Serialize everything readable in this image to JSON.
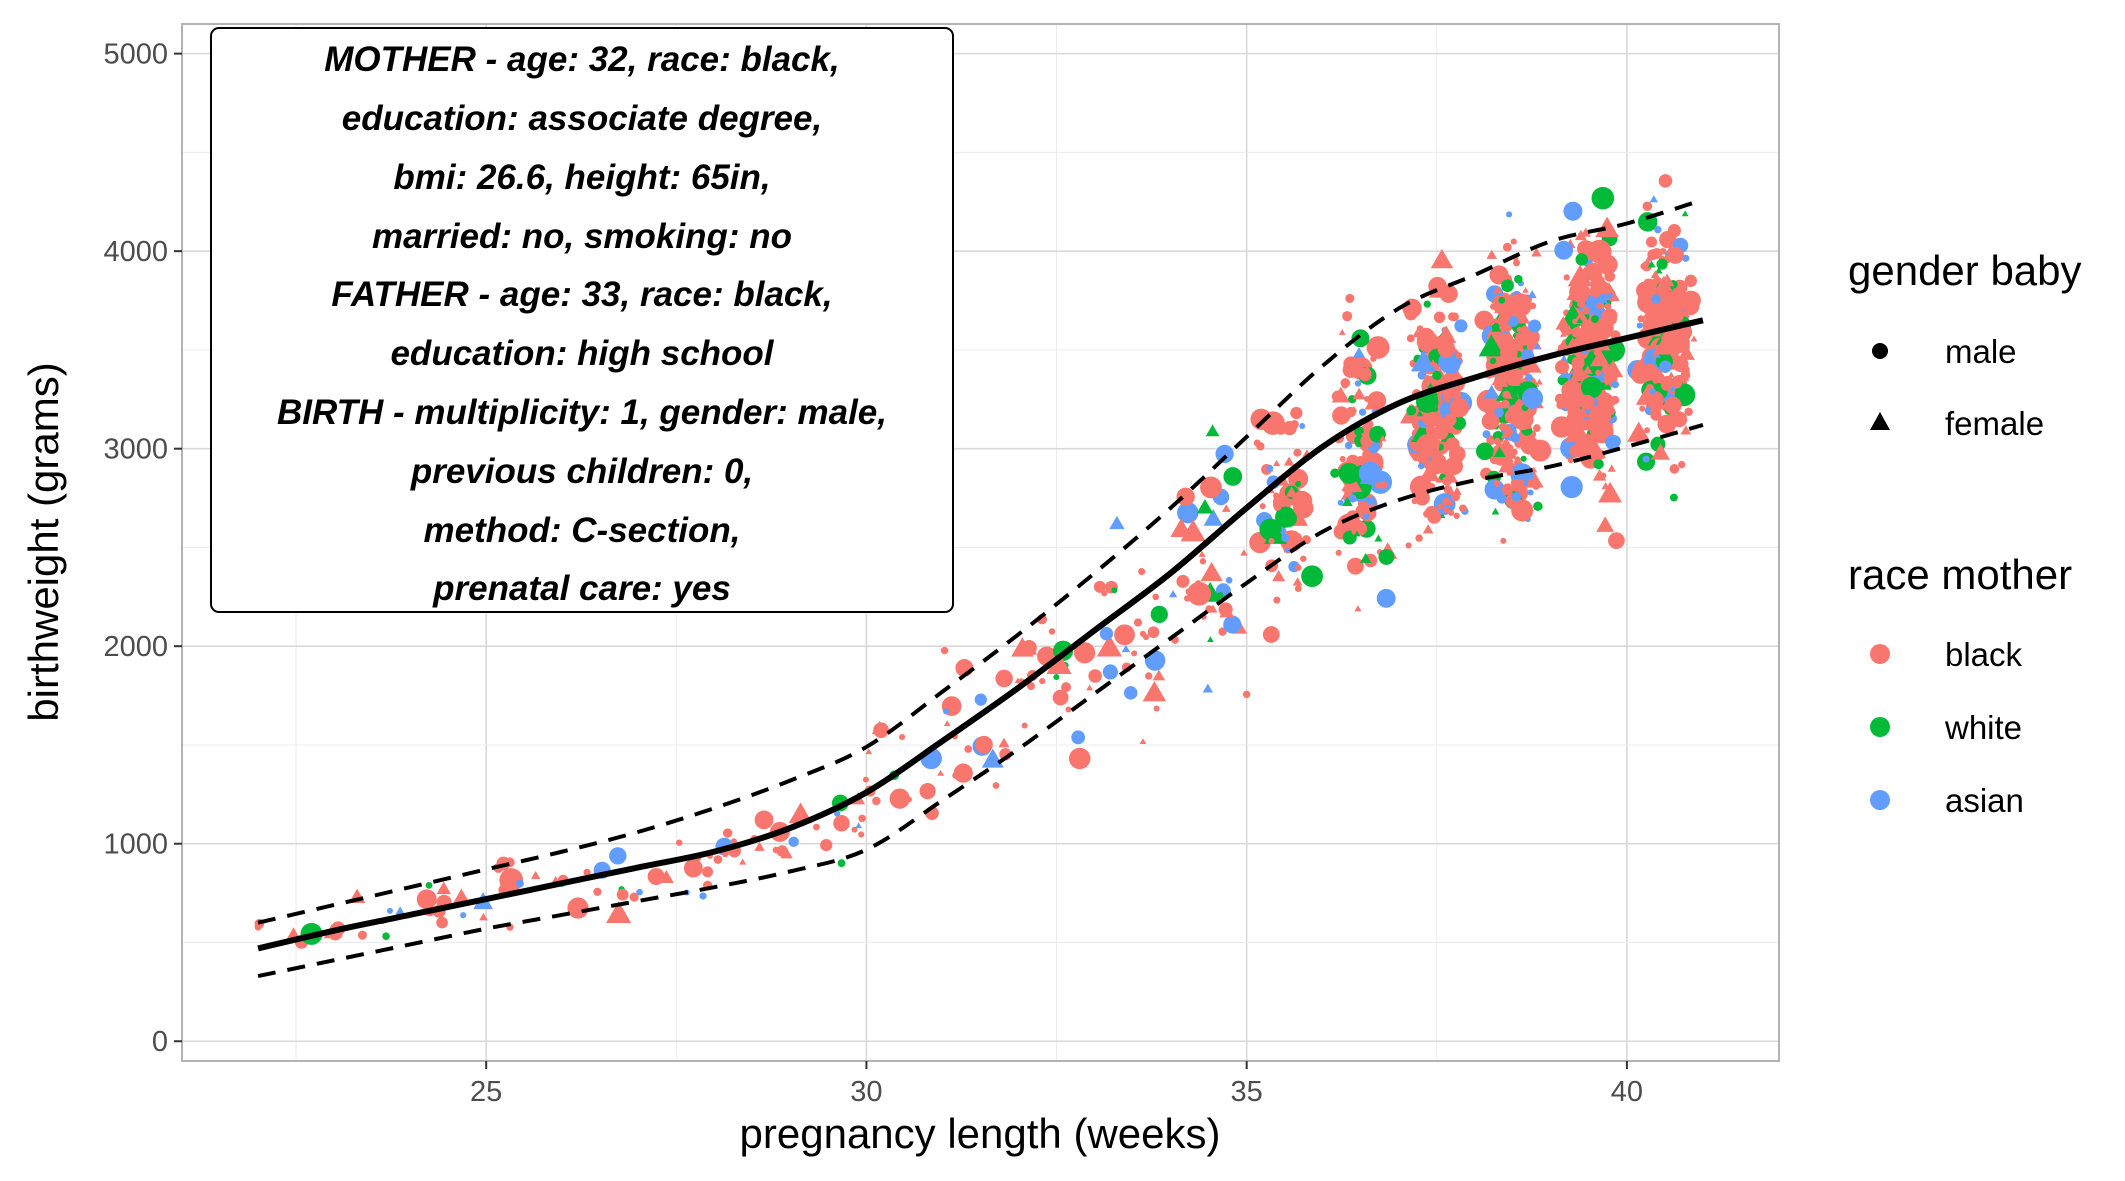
{
  "chart_data": {
    "type": "scatter",
    "xlabel": "pregnancy length (weeks)",
    "ylabel": "birthweight (grams)",
    "xlim": [
      21,
      42
    ],
    "ylim": [
      -100,
      5150
    ],
    "x_ticks": [
      25,
      30,
      35,
      40
    ],
    "x_tick_labels": [
      "25",
      "30",
      "35",
      "40"
    ],
    "y_ticks": [
      0,
      1000,
      2000,
      3000,
      4000,
      5000
    ],
    "y_tick_labels": [
      "0",
      "1000",
      "2000",
      "3000",
      "4000",
      "5000"
    ],
    "grid": true,
    "annotation": {
      "lines": [
        "MOTHER - age: 32, race: black,",
        "education: associate degree,",
        "bmi: 26.6, height: 65in,",
        "married: no, smoking: no",
        "FATHER - age: 33, race: black,",
        "education: high school",
        "BIRTH - multiplicity: 1, gender: male,",
        "previous children: 0,",
        "method: C-section,",
        "prenatal care: yes"
      ],
      "position": "top-left"
    },
    "legends": {
      "shape": {
        "title": "gender baby",
        "items": [
          {
            "label": "male",
            "shape": "circle"
          },
          {
            "label": "female",
            "shape": "triangle"
          }
        ]
      },
      "color": {
        "title": "race mother",
        "items": [
          {
            "label": "black",
            "color": "#F8766D"
          },
          {
            "label": "white",
            "color": "#00BA38"
          },
          {
            "label": "asian",
            "color": "#619CFF"
          }
        ]
      }
    },
    "series": [
      {
        "name": "prediction",
        "style": "solid",
        "x": [
          22,
          23,
          24,
          25,
          26,
          27,
          28,
          29,
          30,
          31,
          32,
          33,
          34,
          35,
          36,
          37,
          38,
          39,
          40,
          41
        ],
        "y": [
          470,
          560,
          640,
          720,
          800,
          880,
          960,
          1080,
          1260,
          1520,
          1790,
          2080,
          2370,
          2700,
          3010,
          3230,
          3360,
          3470,
          3560,
          3650
        ]
      },
      {
        "name": "upper bound",
        "style": "dashed",
        "x": [
          22,
          23,
          24,
          25,
          26,
          27,
          28,
          29,
          30,
          31,
          32,
          33,
          34,
          35,
          36,
          37,
          38,
          39,
          40,
          41
        ],
        "y": [
          600,
          690,
          780,
          870,
          960,
          1060,
          1180,
          1320,
          1490,
          1770,
          2060,
          2370,
          2700,
          3060,
          3420,
          3710,
          3880,
          4050,
          4140,
          4260
        ]
      },
      {
        "name": "lower bound",
        "style": "dashed",
        "x": [
          22,
          23,
          24,
          25,
          26,
          27,
          28,
          29,
          30,
          31,
          32,
          33,
          34,
          35,
          36,
          37,
          38,
          39,
          40,
          41
        ],
        "y": [
          330,
          410,
          490,
          570,
          640,
          710,
          780,
          860,
          970,
          1220,
          1480,
          1760,
          2040,
          2320,
          2580,
          2740,
          2840,
          2910,
          3010,
          3120
        ]
      }
    ],
    "scatter_groups": [
      {
        "x_range": [
          22,
          23
        ],
        "y_center": 560,
        "y_spread": 150,
        "count": 6
      },
      {
        "x_range": [
          23,
          24
        ],
        "y_center": 620,
        "y_spread": 170,
        "count": 8
      },
      {
        "x_range": [
          24,
          25
        ],
        "y_center": 680,
        "y_spread": 190,
        "count": 12
      },
      {
        "x_range": [
          25,
          26
        ],
        "y_center": 750,
        "y_spread": 210,
        "count": 12
      },
      {
        "x_range": [
          26,
          27
        ],
        "y_center": 820,
        "y_spread": 230,
        "count": 10
      },
      {
        "x_range": [
          27,
          28
        ],
        "y_center": 900,
        "y_spread": 250,
        "count": 12
      },
      {
        "x_range": [
          28,
          29
        ],
        "y_center": 1000,
        "y_spread": 270,
        "count": 14
      },
      {
        "x_range": [
          29,
          30
        ],
        "y_center": 1120,
        "y_spread": 300,
        "count": 14
      },
      {
        "x_range": [
          30,
          31
        ],
        "y_center": 1300,
        "y_spread": 330,
        "count": 14
      },
      {
        "x_range": [
          31,
          32
        ],
        "y_center": 1560,
        "y_spread": 400,
        "count": 18
      },
      {
        "x_range": [
          32,
          33
        ],
        "y_center": 1820,
        "y_spread": 460,
        "count": 22
      },
      {
        "x_range": [
          33,
          34
        ],
        "y_center": 2100,
        "y_spread": 540,
        "count": 28
      },
      {
        "x_range": [
          34,
          35
        ],
        "y_center": 2400,
        "y_spread": 620,
        "count": 38
      },
      {
        "x_range": [
          35,
          36
        ],
        "y_center": 2700,
        "y_spread": 650,
        "count": 70
      },
      {
        "x_range": [
          36,
          37
        ],
        "y_center": 2980,
        "y_spread": 680,
        "count": 120
      },
      {
        "x_range": [
          37,
          38
        ],
        "y_center": 3200,
        "y_spread": 700,
        "count": 200
      },
      {
        "x_range": [
          38,
          39
        ],
        "y_center": 3330,
        "y_spread": 720,
        "count": 280
      },
      {
        "x_range": [
          39,
          40
        ],
        "y_center": 3450,
        "y_spread": 720,
        "count": 300
      },
      {
        "x_range": [
          40,
          41
        ],
        "y_center": 3560,
        "y_spread": 700,
        "count": 200
      }
    ]
  }
}
